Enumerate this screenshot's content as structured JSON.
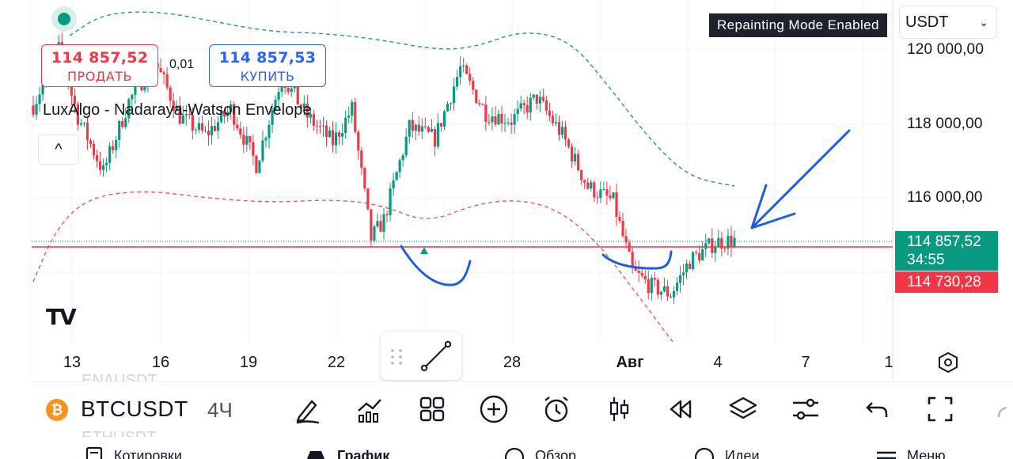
{
  "trade": {
    "sell_price": "114 857,52",
    "sell_label": "ПРОДАТЬ",
    "spread": "0,01",
    "buy_price": "114 857,53",
    "buy_label": "КУПИТЬ"
  },
  "indicator": {
    "name": "LuxAlgo - Nadaraya-Watson Envelope",
    "collapse_glyph": "^"
  },
  "notice": "Repainting Mode Enabled",
  "currency": {
    "selected": "USDT"
  },
  "price_axis": {
    "labels": [
      "120 000,00",
      "118 000,00",
      "116 000,00"
    ],
    "last_price": "114 857,52",
    "countdown": "34:55",
    "bid_price": "114 730,28"
  },
  "time_axis": {
    "labels": [
      "13",
      "16",
      "19",
      "22",
      "28",
      "Авг",
      "4",
      "7",
      "1"
    ]
  },
  "symbol": {
    "ticker": "BTCUSDT",
    "interval": "4Ч",
    "coin_glyph": "₿"
  },
  "logo_text": "TV",
  "watchlist_ghosts": {
    "above": "ENAUSDT",
    "below": "ETHUSDT"
  },
  "bottom_nav": [
    "Котировки",
    "График",
    "Обзор",
    "Идеи",
    "Меню"
  ],
  "toolbar_icons": [
    "brush-icon",
    "indicators-icon",
    "templates-icon",
    "add-icon",
    "alert-icon",
    "candles-icon",
    "replay-icon",
    "layers-icon",
    "settings-sliders-icon",
    "undo-icon",
    "fullscreen-icon"
  ],
  "colors": {
    "bull": "#089981",
    "bear": "#f23645",
    "annotation": "#1e5fe0",
    "upper_band": "#22997e",
    "lower_band": "#f0594f"
  },
  "chart_data": {
    "type": "candlestick",
    "symbol": "BTCUSDT",
    "interval": "4H",
    "ylim": [
      113200,
      120600
    ],
    "y_ticks": [
      116000,
      118000,
      120000
    ],
    "last_price": 114857.52,
    "bid_price": 114730.28,
    "grid": true,
    "annotations": [
      "two hand-drawn blue arcs under lows",
      "hand-drawn blue arrow pointing at last candle"
    ]
  }
}
